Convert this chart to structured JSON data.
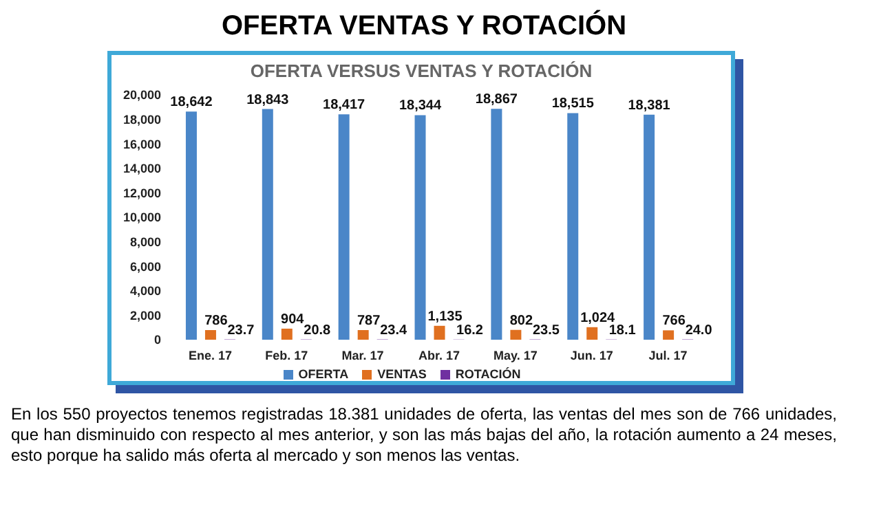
{
  "chart_data": {
    "type": "bar",
    "title": "OFERTA VENTAS Y ROTACIÓN",
    "subtitle": "OFERTA VERSUS VENTAS Y ROTACIÓN",
    "categories": [
      "Ene. 17",
      "Feb. 17",
      "Mar. 17",
      "Abr. 17",
      "May. 17",
      "Jun. 17",
      "Jul. 17"
    ],
    "series": [
      {
        "name": "OFERTA",
        "color": "#4a86c8",
        "values": [
          18642,
          18843,
          18417,
          18344,
          18867,
          18515,
          18381
        ],
        "value_labels": [
          "18,642",
          "18,843",
          "18,417",
          "18,344",
          "18,867",
          "18,515",
          "18,381"
        ]
      },
      {
        "name": "VENTAS",
        "color": "#e07020",
        "values": [
          786,
          904,
          787,
          1135,
          802,
          1024,
          766
        ],
        "value_labels": [
          "786",
          "904",
          "787",
          "1,135",
          "802",
          "1,024",
          "766"
        ]
      },
      {
        "name": "ROTACIÓN",
        "color": "#7030a0",
        "values": [
          23.7,
          20.8,
          23.4,
          16.2,
          23.5,
          18.1,
          24.0
        ],
        "value_labels": [
          "23.7",
          "20.8",
          "23.4",
          "16.2",
          "23.5",
          "18.1",
          "24.0"
        ]
      }
    ],
    "ylim": [
      0,
      20000
    ],
    "yticks": [
      {
        "value": 0,
        "label": "0"
      },
      {
        "value": 2000,
        "label": "2,000"
      },
      {
        "value": 4000,
        "label": "4,000"
      },
      {
        "value": 6000,
        "label": "6,000"
      },
      {
        "value": 8000,
        "label": "8,000"
      },
      {
        "value": 10000,
        "label": "10,000"
      },
      {
        "value": 12000,
        "label": "12,000"
      },
      {
        "value": 14000,
        "label": "14,000"
      },
      {
        "value": 16000,
        "label": "16,000"
      },
      {
        "value": 18000,
        "label": "18,000"
      },
      {
        "value": 20000,
        "label": "20,000"
      }
    ],
    "grid": false,
    "legend": "bottom",
    "annotations": [
      "En los 550 proyectos tenemos registradas 18.381 unidades de oferta, las ventas del mes son de 766 unidades, que han disminuido con respecto al mes anterior, y son las más bajas del año, la rotación aumento a 24 meses, esto porque ha salido más oferta al mercado y son menos las ventas."
    ]
  }
}
